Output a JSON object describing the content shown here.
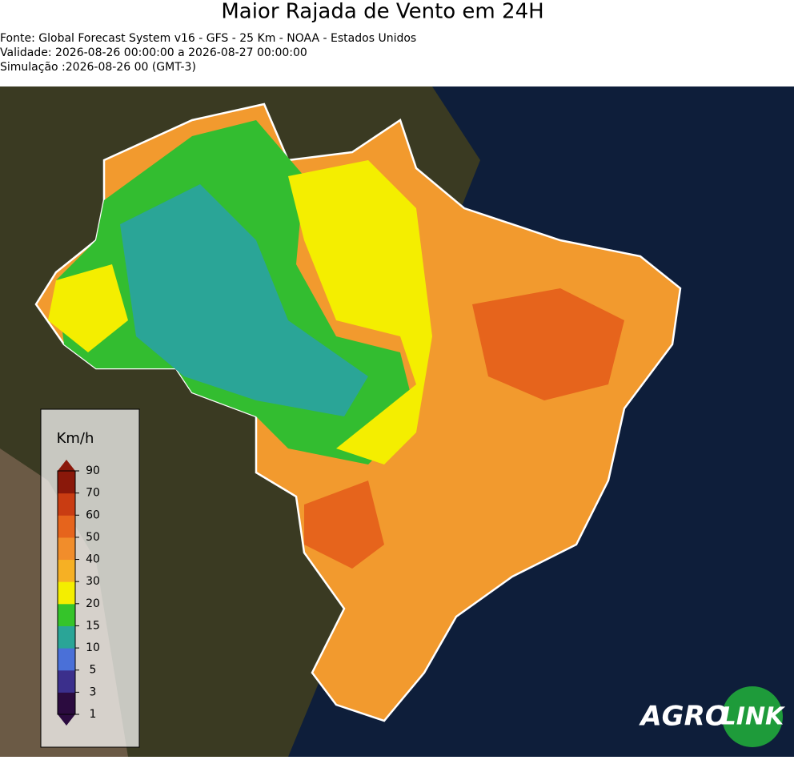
{
  "header": {
    "title": "Maior Rajada de Vento em 24H",
    "lines": [
      "Fonte: Global Forecast System v16 - GFS - 25 Km - NOAA - Estados Unidos",
      "Validade: 2026-08-26 00:00:00 a 2026-08-27 00:00:00",
      "Simulação :2026-08-26 00 (GMT-3)"
    ]
  },
  "legend": {
    "unit": "Km/h",
    "ticks": [
      1,
      3,
      5,
      10,
      15,
      20,
      30,
      40,
      50,
      60,
      70,
      90
    ],
    "colors": [
      "#2b0b3f",
      "#3b2f8c",
      "#4a70d8",
      "#2aa597",
      "#35c42a",
      "#f4ee00",
      "#f6b024",
      "#f18d2b",
      "#e6641c",
      "#c93c12",
      "#8a180a"
    ]
  },
  "logo": {
    "left": "AGRO",
    "right": "LINK"
  }
}
